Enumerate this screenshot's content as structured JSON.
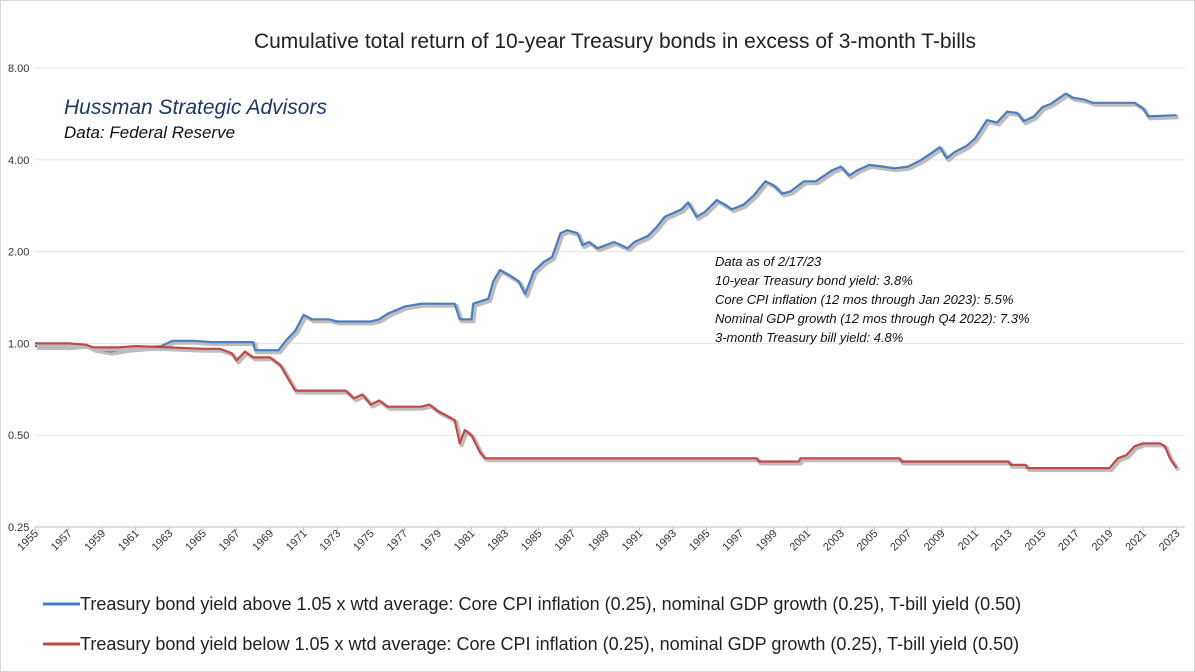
{
  "chart_data": {
    "type": "line",
    "title": "Cumulative total return of 10-year Treasury bonds in excess of 3-month T-bills",
    "yscale": "log",
    "ylim": [
      0.25,
      8.0
    ],
    "yticks": [
      "8.00",
      "4.00",
      "2.00",
      "1.00",
      "0.50",
      "0.25"
    ],
    "ytick_values": [
      8.0,
      4.0,
      2.0,
      1.0,
      0.5,
      0.25
    ],
    "xlim": [
      1955,
      2023.5
    ],
    "xticks": [
      "1955",
      "1957",
      "1959",
      "1961",
      "1963",
      "1965",
      "1967",
      "1969",
      "1971",
      "1973",
      "1975",
      "1977",
      "1979",
      "1981",
      "1983",
      "1985",
      "1987",
      "1989",
      "1991",
      "1993",
      "1995",
      "1997",
      "1999",
      "2001",
      "2003",
      "2005",
      "2007",
      "2009",
      "2011",
      "2013",
      "2015",
      "2017",
      "2019",
      "2021",
      "2023"
    ],
    "grid": "horizontal",
    "legend_placement": "bottom",
    "annotations": {
      "source_name": "Hussman Strategic Advisors",
      "source_data": "Data: Federal Reserve",
      "notes": [
        "Data as of 2/17/23",
        "10-year Treasury bond yield: 3.8%",
        "Core CPI inflation (12 mos through Jan 2023): 5.5%",
        "Nominal GDP growth (12 mos through Q4 2022): 7.3%",
        "3-month Treasury bill yield: 4.8%"
      ]
    },
    "series": [
      {
        "name": "Treasury bond yield above 1.05 x wtd average: Core CPI inflation (0.25), nominal GDP growth (0.25), T-bill yield (0.50)",
        "color": "#4a7ec0",
        "points": [
          [
            1955.0,
            0.98
          ],
          [
            1956.0,
            0.98
          ],
          [
            1957.0,
            0.98
          ],
          [
            1958.0,
            0.99
          ],
          [
            1958.5,
            0.96
          ],
          [
            1959.5,
            0.94
          ],
          [
            1960.5,
            0.96
          ],
          [
            1961.5,
            0.97
          ],
          [
            1962.5,
            0.98
          ],
          [
            1963.2,
            1.02
          ],
          [
            1964.5,
            1.02
          ],
          [
            1965.5,
            1.01
          ],
          [
            1966.5,
            1.01
          ],
          [
            1968.0,
            1.01
          ],
          [
            1968.1,
            0.95
          ],
          [
            1969.5,
            0.95
          ],
          [
            1970.0,
            1.03
          ],
          [
            1970.5,
            1.1
          ],
          [
            1971.0,
            1.24
          ],
          [
            1971.5,
            1.2
          ],
          [
            1972.5,
            1.2
          ],
          [
            1973.0,
            1.18
          ],
          [
            1975.0,
            1.18
          ],
          [
            1975.5,
            1.2
          ],
          [
            1976.0,
            1.25
          ],
          [
            1977.0,
            1.32
          ],
          [
            1978.0,
            1.35
          ],
          [
            1980.0,
            1.35
          ],
          [
            1980.3,
            1.2
          ],
          [
            1981.0,
            1.2
          ],
          [
            1981.1,
            1.35
          ],
          [
            1982.0,
            1.4
          ],
          [
            1982.3,
            1.6
          ],
          [
            1982.7,
            1.74
          ],
          [
            1983.2,
            1.68
          ],
          [
            1983.8,
            1.6
          ],
          [
            1984.2,
            1.45
          ],
          [
            1984.7,
            1.72
          ],
          [
            1985.3,
            1.85
          ],
          [
            1985.8,
            1.92
          ],
          [
            1986.3,
            2.3
          ],
          [
            1986.7,
            2.35
          ],
          [
            1987.3,
            2.3
          ],
          [
            1987.6,
            2.1
          ],
          [
            1988.0,
            2.15
          ],
          [
            1988.5,
            2.05
          ],
          [
            1989.5,
            2.15
          ],
          [
            1990.3,
            2.05
          ],
          [
            1990.7,
            2.15
          ],
          [
            1991.5,
            2.25
          ],
          [
            1992.0,
            2.4
          ],
          [
            1992.5,
            2.6
          ],
          [
            1993.5,
            2.75
          ],
          [
            1993.9,
            2.9
          ],
          [
            1994.4,
            2.6
          ],
          [
            1994.9,
            2.7
          ],
          [
            1995.6,
            2.95
          ],
          [
            1996.1,
            2.85
          ],
          [
            1996.5,
            2.75
          ],
          [
            1997.2,
            2.85
          ],
          [
            1997.8,
            3.05
          ],
          [
            1998.5,
            3.4
          ],
          [
            1999.0,
            3.3
          ],
          [
            1999.5,
            3.1
          ],
          [
            2000.0,
            3.15
          ],
          [
            2000.8,
            3.4
          ],
          [
            2001.5,
            3.4
          ],
          [
            2002.5,
            3.7
          ],
          [
            2003.0,
            3.8
          ],
          [
            2003.5,
            3.55
          ],
          [
            2004.0,
            3.7
          ],
          [
            2004.7,
            3.85
          ],
          [
            2005.5,
            3.8
          ],
          [
            2006.2,
            3.75
          ],
          [
            2007.0,
            3.8
          ],
          [
            2007.8,
            4.0
          ],
          [
            2008.9,
            4.4
          ],
          [
            2009.3,
            4.05
          ],
          [
            2009.8,
            4.25
          ],
          [
            2010.5,
            4.45
          ],
          [
            2011.0,
            4.7
          ],
          [
            2011.7,
            5.4
          ],
          [
            2012.3,
            5.3
          ],
          [
            2012.9,
            5.75
          ],
          [
            2013.5,
            5.7
          ],
          [
            2013.9,
            5.35
          ],
          [
            2014.5,
            5.55
          ],
          [
            2015.0,
            5.95
          ],
          [
            2015.5,
            6.1
          ],
          [
            2016.4,
            6.6
          ],
          [
            2016.8,
            6.4
          ],
          [
            2017.5,
            6.3
          ],
          [
            2018.0,
            6.15
          ],
          [
            2019.0,
            6.15
          ],
          [
            2020.5,
            6.15
          ],
          [
            2021.0,
            5.9
          ],
          [
            2021.3,
            5.55
          ],
          [
            2023.0,
            5.6
          ]
        ]
      },
      {
        "name": "Treasury bond yield below 1.05 x wtd average: Core CPI inflation (0.25), nominal GDP growth (0.25), T-bill yield (0.50)",
        "color": "#c04a4a",
        "points": [
          [
            1955.0,
            1.0
          ],
          [
            1957.0,
            1.0
          ],
          [
            1958.0,
            0.99
          ],
          [
            1958.5,
            0.97
          ],
          [
            1960.0,
            0.97
          ],
          [
            1961.0,
            0.98
          ],
          [
            1963.0,
            0.97
          ],
          [
            1965.0,
            0.96
          ],
          [
            1966.0,
            0.96
          ],
          [
            1966.7,
            0.93
          ],
          [
            1967.0,
            0.88
          ],
          [
            1967.5,
            0.94
          ],
          [
            1968.0,
            0.9
          ],
          [
            1969.0,
            0.9
          ],
          [
            1969.6,
            0.85
          ],
          [
            1970.0,
            0.78
          ],
          [
            1970.5,
            0.7
          ],
          [
            1973.5,
            0.7
          ],
          [
            1974.0,
            0.66
          ],
          [
            1974.5,
            0.68
          ],
          [
            1975.0,
            0.63
          ],
          [
            1975.5,
            0.65
          ],
          [
            1976.0,
            0.62
          ],
          [
            1978.0,
            0.62
          ],
          [
            1978.5,
            0.63
          ],
          [
            1979.0,
            0.6
          ],
          [
            1979.5,
            0.58
          ],
          [
            1980.0,
            0.56
          ],
          [
            1980.3,
            0.47
          ],
          [
            1980.6,
            0.52
          ],
          [
            1981.0,
            0.5
          ],
          [
            1981.5,
            0.44
          ],
          [
            1981.8,
            0.42
          ],
          [
            1998.0,
            0.42
          ],
          [
            1998.1,
            0.41
          ],
          [
            2000.5,
            0.41
          ],
          [
            2000.6,
            0.42
          ],
          [
            2006.5,
            0.42
          ],
          [
            2006.6,
            0.41
          ],
          [
            2013.0,
            0.41
          ],
          [
            2013.1,
            0.4
          ],
          [
            2014.0,
            0.4
          ],
          [
            2014.1,
            0.39
          ],
          [
            2019.0,
            0.39
          ],
          [
            2019.5,
            0.42
          ],
          [
            2020.0,
            0.43
          ],
          [
            2020.5,
            0.46
          ],
          [
            2021.0,
            0.47
          ],
          [
            2022.0,
            0.47
          ],
          [
            2022.3,
            0.46
          ],
          [
            2022.6,
            0.42
          ],
          [
            2023.0,
            0.39
          ]
        ]
      }
    ]
  }
}
